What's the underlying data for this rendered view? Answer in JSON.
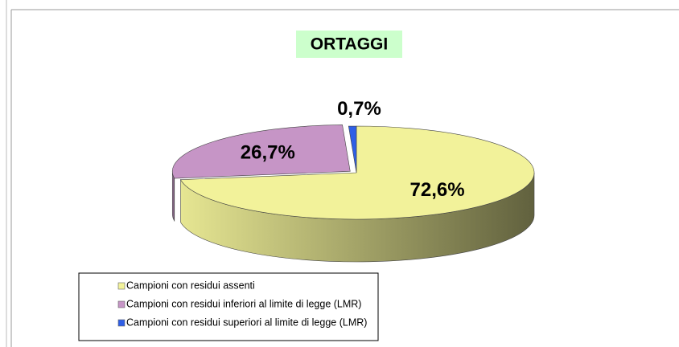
{
  "chart_data": {
    "type": "pie",
    "title": "ORTAGGI",
    "categories": [
      "Campioni con residui assenti",
      "Campioni con residui inferiori al limite di legge (LMR)",
      "Campioni con residui superiori al limite di legge (LMR)"
    ],
    "values": [
      72.6,
      26.7,
      0.7
    ],
    "value_labels": [
      "72,6%",
      "26,7%",
      "0,7%"
    ],
    "colors": [
      "#f2f29a",
      "#c695c6",
      "#2f5fe6"
    ]
  }
}
